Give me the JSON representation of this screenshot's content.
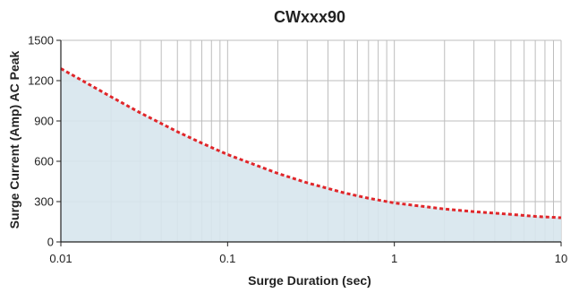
{
  "chart_data": {
    "type": "area",
    "title": "CWxxx90",
    "xlabel": "Surge Duration (sec)",
    "ylabel": "Surge Current (Amp) AC Peak",
    "x_scale": "log",
    "xlim": [
      0.01,
      10
    ],
    "ylim": [
      0,
      1500
    ],
    "x_ticks": [
      0.01,
      0.1,
      1,
      10
    ],
    "x_tick_labels": [
      "0.01",
      "0.1",
      "1",
      "10"
    ],
    "y_ticks": [
      0,
      300,
      600,
      900,
      1200,
      1500
    ],
    "y_tick_labels": [
      "0",
      "300",
      "600",
      "900",
      "1200",
      "1500"
    ],
    "grid": true,
    "legend": "none",
    "series": [
      {
        "line_style": "dashed",
        "color": "#e0262a",
        "fill_color": "#d7e6ed",
        "x": [
          0.01,
          0.02,
          0.03,
          0.05,
          0.07,
          0.1,
          0.2,
          0.3,
          0.5,
          0.7,
          1,
          2,
          3,
          5,
          7,
          10
        ],
        "y": [
          1290,
          1080,
          960,
          820,
          735,
          650,
          510,
          440,
          365,
          325,
          290,
          245,
          225,
          205,
          190,
          180
        ]
      }
    ]
  }
}
